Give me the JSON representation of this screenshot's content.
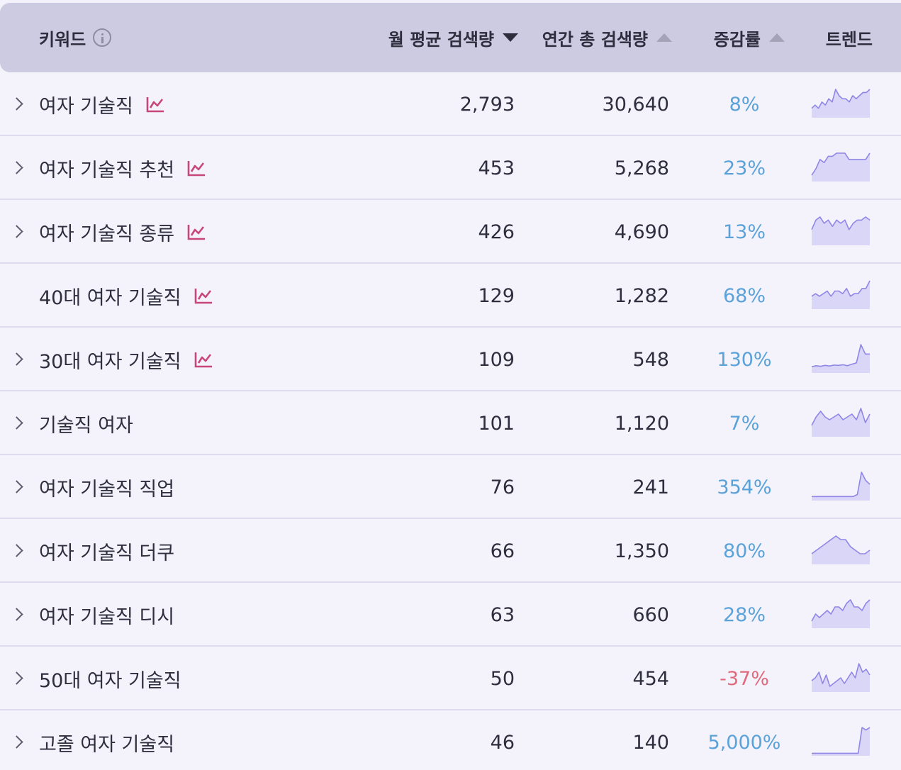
{
  "header": {
    "keyword": "키워드",
    "monthly": "월 평균 검색량",
    "annual": "연간 총 검색량",
    "growth": "증감률",
    "trend": "트렌드"
  },
  "colors": {
    "positive": "#5aa2d8",
    "negative": "#e06a7c",
    "chart_icon": "#c8477a",
    "spark_line": "#8f86e6",
    "spark_fill": "#d9d6f7"
  },
  "rows": [
    {
      "keyword": "여자 기술직",
      "chart_icon": true,
      "monthly": "2,793",
      "annual": "30,640",
      "growth": "8%",
      "negative": false,
      "expand": true,
      "trend": [
        3,
        4,
        3,
        5,
        4,
        6,
        5,
        9,
        7,
        6,
        6,
        5,
        7,
        6,
        7,
        8,
        8,
        9
      ]
    },
    {
      "keyword": "여자 기술직 추천",
      "chart_icon": true,
      "monthly": "453",
      "annual": "5,268",
      "growth": "23%",
      "negative": false,
      "expand": true,
      "trend": [
        2,
        4,
        7,
        6,
        8,
        8,
        9,
        9,
        9,
        7,
        7,
        7,
        7,
        7,
        9
      ]
    },
    {
      "keyword": "여자 기술직 종류",
      "chart_icon": true,
      "monthly": "426",
      "annual": "4,690",
      "growth": "13%",
      "negative": false,
      "expand": true,
      "trend": [
        5,
        8,
        9,
        7,
        8,
        6,
        8,
        7,
        8,
        5,
        7,
        8,
        8,
        9,
        8
      ]
    },
    {
      "keyword": "40대 여자 기술직",
      "chart_icon": true,
      "monthly": "129",
      "annual": "1,282",
      "growth": "68%",
      "negative": false,
      "expand": false,
      "trend": [
        5,
        6,
        5,
        6,
        7,
        5,
        7,
        7,
        6,
        8,
        5,
        6,
        6,
        8,
        8,
        11
      ]
    },
    {
      "keyword": "30대 여자 기술직",
      "chart_icon": true,
      "monthly": "109",
      "annual": "548",
      "growth": "130%",
      "negative": false,
      "expand": true,
      "trend": [
        2,
        2.3,
        2.1,
        2.4,
        2.2,
        2.5,
        2.4,
        2.6,
        2.3,
        2.8,
        3.2,
        9,
        6,
        6
      ]
    },
    {
      "keyword": "기술직 여자",
      "chart_icon": false,
      "monthly": "101",
      "annual": "1,120",
      "growth": "7%",
      "negative": false,
      "expand": true,
      "trend": [
        4,
        7,
        9,
        7,
        6,
        7,
        8,
        6,
        7,
        8,
        6,
        10,
        5,
        8
      ]
    },
    {
      "keyword": "여자 기술직 직업",
      "chart_icon": false,
      "monthly": "76",
      "annual": "241",
      "growth": "354%",
      "negative": false,
      "expand": true,
      "trend": [
        1,
        1,
        1,
        1,
        1,
        1,
        1,
        1,
        1,
        1,
        1,
        1.5,
        7,
        5,
        4
      ]
    },
    {
      "keyword": "여자 기술직 더쿠",
      "chart_icon": false,
      "monthly": "66",
      "annual": "1,350",
      "growth": "80%",
      "negative": false,
      "expand": true,
      "trend": [
        3,
        4,
        5,
        6,
        7,
        8,
        7,
        7,
        5,
        4,
        3,
        3,
        4
      ]
    },
    {
      "keyword": "여자 기술직 디시",
      "chart_icon": false,
      "monthly": "63",
      "annual": "660",
      "growth": "28%",
      "negative": false,
      "expand": true,
      "trend": [
        2,
        4,
        3,
        4,
        5,
        4,
        6,
        6,
        5,
        7,
        8,
        6,
        6,
        5,
        7,
        8
      ]
    },
    {
      "keyword": "50대 여자 기술직",
      "chart_icon": false,
      "monthly": "50",
      "annual": "454",
      "growth": "-37%",
      "negative": true,
      "expand": true,
      "trend": [
        4,
        5,
        7,
        3,
        6,
        2,
        3,
        4,
        5,
        3,
        5,
        7,
        5,
        10,
        7,
        8,
        6
      ]
    },
    {
      "keyword": "고졸 여자 기술직",
      "chart_icon": false,
      "monthly": "46",
      "annual": "140",
      "growth": "5,000%",
      "negative": false,
      "expand": true,
      "trend": [
        1,
        1,
        1,
        1,
        1,
        1,
        1,
        1,
        1,
        1,
        1,
        1,
        1,
        11,
        10,
        11
      ]
    }
  ]
}
